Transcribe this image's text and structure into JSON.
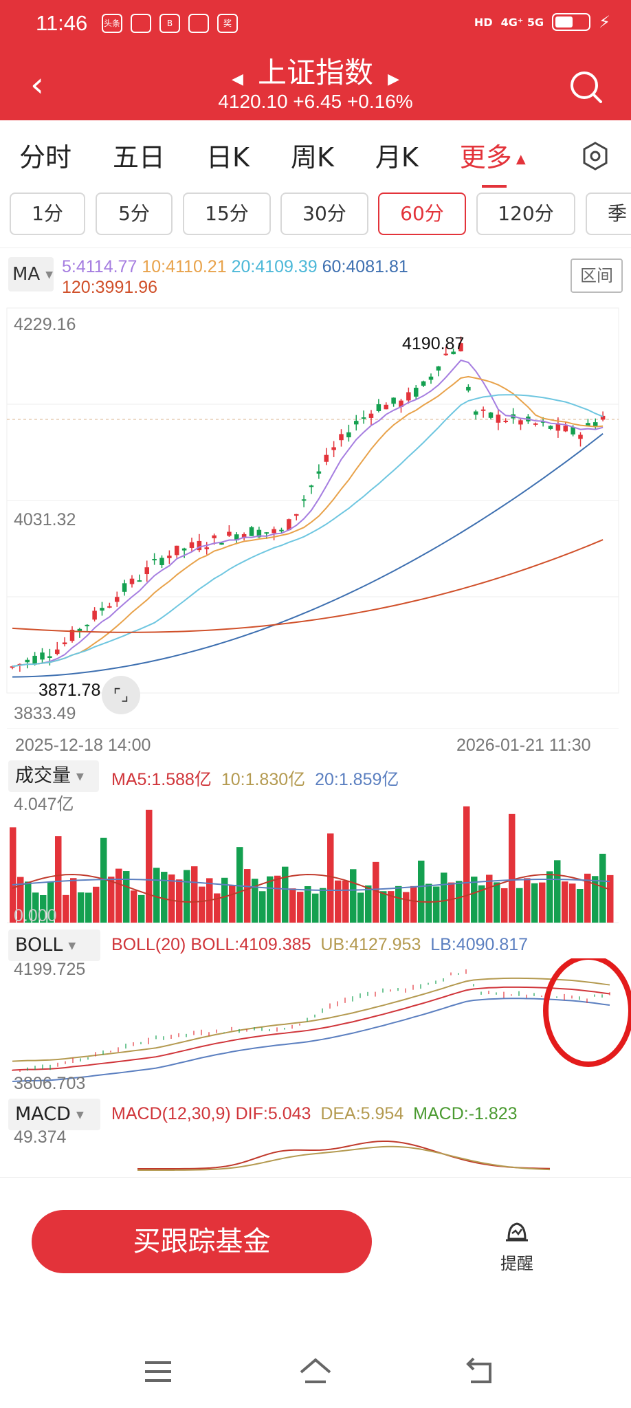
{
  "status_bar": {
    "time": "11:46",
    "left_icons": [
      "头条",
      "",
      "B",
      "",
      "奖"
    ],
    "network": "4G⁺ 5G",
    "hd": "HD",
    "battery_level": 0.55
  },
  "header": {
    "title": "上证指数",
    "quote": "4120.10 +6.45 +0.16%"
  },
  "tabs": [
    {
      "label": "分时"
    },
    {
      "label": "五日"
    },
    {
      "label": "日K"
    },
    {
      "label": "周K"
    },
    {
      "label": "月K"
    },
    {
      "label": "更多",
      "active": true
    }
  ],
  "periods": [
    {
      "label": "1分"
    },
    {
      "label": "5分"
    },
    {
      "label": "15分"
    },
    {
      "label": "30分"
    },
    {
      "label": "60分",
      "active": true
    },
    {
      "label": "120分"
    },
    {
      "label": "季"
    }
  ],
  "ma_panel": {
    "selector": "MA",
    "ma5": "5:4114.77",
    "ma10": "10:4110.21",
    "ma20": "20:4109.39",
    "ma60": "60:4081.81",
    "ma120": "120:3991.96",
    "range_button": "区间",
    "y_top": "4229.16",
    "y_mid": "4031.32",
    "y_bottom": "3833.49",
    "high_label": "4190.87",
    "low_label": "3871.78",
    "date_start": "2025-12-18 14:00",
    "date_end": "2026-01-21 11:30"
  },
  "volume_panel": {
    "selector": "成交量",
    "ma5": "MA5:1.588亿",
    "ma10": "10:1.830亿",
    "ma20": "20:1.859亿",
    "max": "4.047亿",
    "min": "0.000"
  },
  "boll_panel": {
    "selector": "BOLL",
    "params": "BOLL(20)",
    "boll": "BOLL:4109.385",
    "ub": "UB:4127.953",
    "lb": "LB:4090.817",
    "max": "4199.725",
    "min": "3806.703"
  },
  "macd_panel": {
    "selector": "MACD",
    "params": "MACD(12,30,9)",
    "dif": "DIF:5.043",
    "dea": "DEA:5.954",
    "macd": "MACD:-1.823",
    "max": "49.374"
  },
  "bottom": {
    "buy_button": "买跟踪基金",
    "alert_label": "提醒"
  },
  "colors": {
    "brand_red": "#e3333a",
    "up": "#e3333a",
    "down": "#14a050",
    "ma5": "#a57de0",
    "ma10": "#e8a24a",
    "ma20": "#6ec6e0",
    "ma60": "#3d6fb0",
    "ma120": "#d0502a"
  }
}
